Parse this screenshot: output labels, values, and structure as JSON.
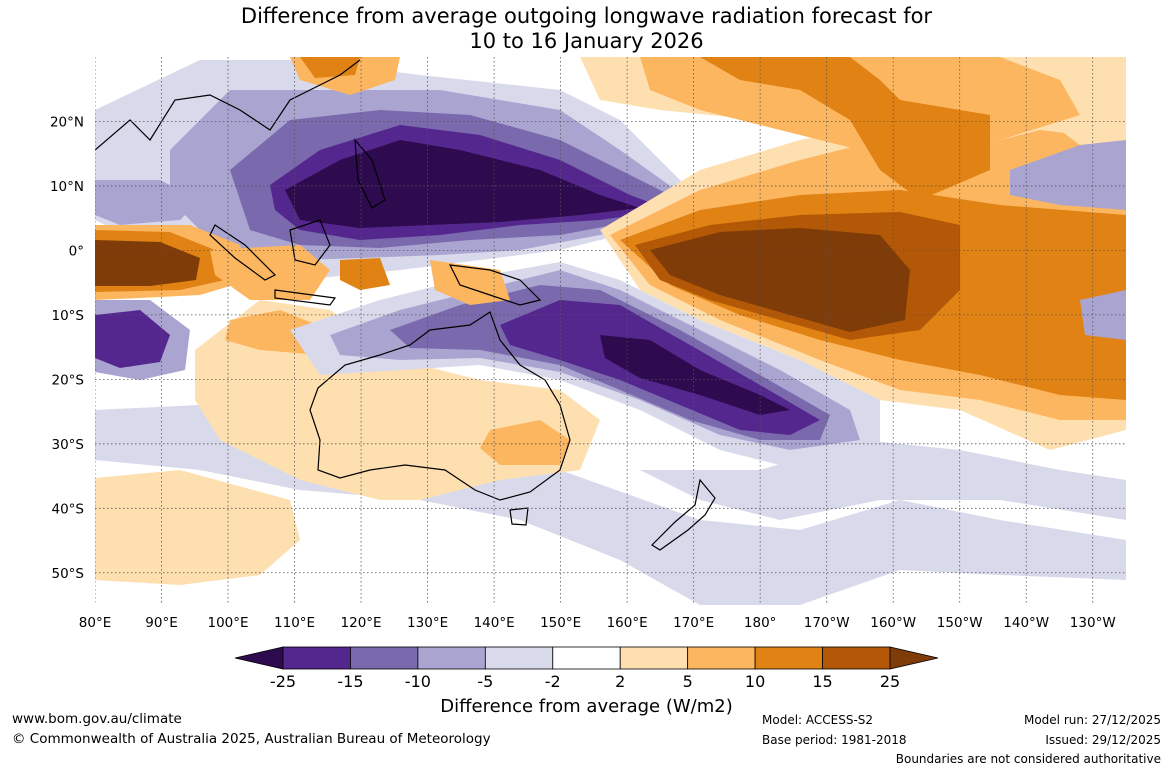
{
  "title": {
    "line1": "Difference from average outgoing longwave radiation forecast for",
    "line2": "10 to 16 January 2026"
  },
  "map": {
    "lon_ticks": [
      "80°E",
      "90°E",
      "100°E",
      "110°E",
      "120°E",
      "130°E",
      "140°E",
      "150°E",
      "160°E",
      "170°E",
      "180°",
      "170°W",
      "160°W",
      "150°W",
      "140°W",
      "130°W"
    ],
    "lat_ticks": [
      "20°N",
      "10°N",
      "0°",
      "10°S",
      "20°S",
      "30°S",
      "40°S",
      "50°S"
    ],
    "lon_range": [
      80,
      235
    ],
    "lat_range": [
      -55,
      30
    ],
    "anomaly_regions": [
      {
        "name": "western-pacific-negative",
        "class": "-25"
      },
      {
        "name": "south-pacific-convergence-negative",
        "class": "-25"
      },
      {
        "name": "central-pacific-positive",
        "class": "25"
      },
      {
        "name": "indian-ocean-equatorial-positive",
        "class": "25"
      }
    ]
  },
  "colorbar": {
    "title": "Difference from average (W/m2)",
    "labels": [
      "-25",
      "-15",
      "-10",
      "-5",
      "-2",
      "2",
      "5",
      "10",
      "15",
      "25"
    ],
    "colors": [
      "#2d0b4e",
      "#54278f",
      "#7a6aad",
      "#a9a5d0",
      "#d9d9ec",
      "#ffffff",
      "#fedfb0",
      "#fdb660",
      "#e08214",
      "#b35806",
      "#7f3b08"
    ]
  },
  "footer": {
    "website": "www.bom.gov.au/climate",
    "copyright": "© Commonwealth of Australia 2025, Australian Bureau of Meteorology",
    "model": "Model: ACCESS-S2",
    "base_period": "Base period: 1981-2018",
    "model_run": "Model run: 27/12/2025",
    "issued": "Issued: 29/12/2025",
    "disclaimer": "Boundaries are not considered authoritative"
  }
}
